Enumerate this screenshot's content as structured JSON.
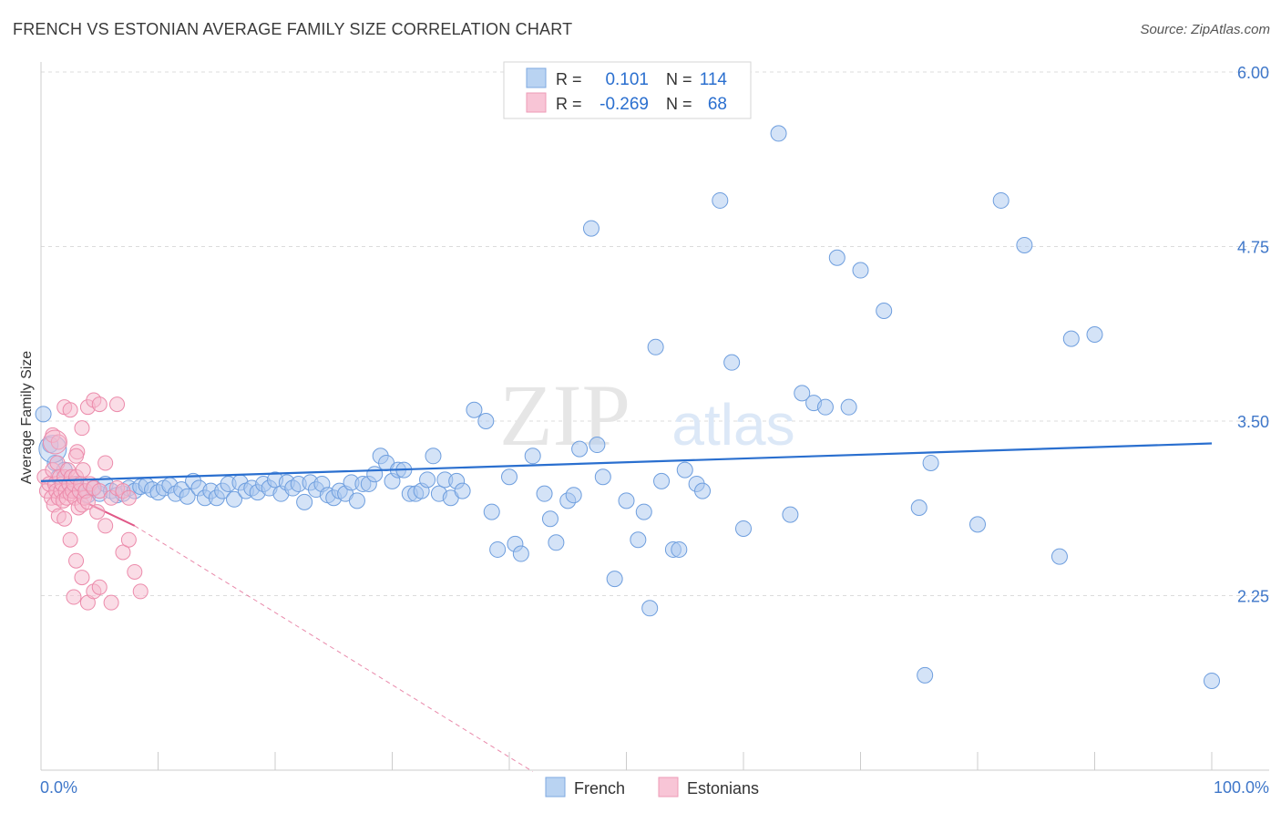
{
  "title": "FRENCH VS ESTONIAN AVERAGE FAMILY SIZE CORRELATION CHART",
  "source": "Source: ZipAtlas.com",
  "watermark": {
    "zip": "ZIP",
    "atlas": "atlas"
  },
  "colors": {
    "french_fill": "#a9c8ef",
    "french_stroke": "#6e9ede",
    "french_line": "#2a6fcf",
    "est_fill": "#f6b9cd",
    "est_stroke": "#ec8bab",
    "est_line": "#e05887",
    "tick_label": "#3f77c9",
    "grid": "#dcdcdc"
  },
  "legend": {
    "rows": [
      {
        "r_label": "R =",
        "r_value": "0.101",
        "n_label": "N =",
        "n_value": "114"
      },
      {
        "r_label": "R =",
        "r_value": "-0.269",
        "n_label": "N =",
        "n_value": "68"
      }
    ],
    "bottom": [
      "French",
      "Estonians"
    ]
  },
  "chart_data": {
    "type": "scatter",
    "title": "FRENCH VS ESTONIAN AVERAGE FAMILY SIZE CORRELATION CHART",
    "xlabel": "",
    "ylabel": "Average Family Size",
    "xlim": [
      0,
      100
    ],
    "ylim": [
      1.0,
      6.3
    ],
    "x_tick_labels": [
      "0.0%",
      "100.0%"
    ],
    "y_ticks": [
      2.25,
      3.5,
      4.75,
      6.0
    ],
    "y_tick_labels": [
      "2.25",
      "3.50",
      "4.75",
      "6.00"
    ],
    "grid": true,
    "series": [
      {
        "name": "French",
        "r": 0.101,
        "n": 114,
        "trend": {
          "x": [
            0,
            100
          ],
          "y": [
            3.07,
            3.34
          ]
        },
        "points": [
          [
            0.2,
            3.55
          ],
          [
            0.8,
            3.33
          ],
          [
            1.2,
            3.2
          ],
          [
            1.5,
            3.1
          ],
          [
            2,
            3.15
          ],
          [
            2.5,
            3.05
          ],
          [
            3,
            3.05
          ],
          [
            3.5,
            3.0
          ],
          [
            4,
            2.97
          ],
          [
            4.5,
            3.02
          ],
          [
            5,
            2.98
          ],
          [
            5.5,
            3.05
          ],
          [
            6,
            3.0
          ],
          [
            6.5,
            2.97
          ],
          [
            7,
            2.98
          ],
          [
            7.5,
            3.02
          ],
          [
            8,
            3.0
          ],
          [
            8.5,
            3.03
          ],
          [
            9,
            3.04
          ],
          [
            9.5,
            3.01
          ],
          [
            10,
            2.99
          ],
          [
            10.5,
            3.02
          ],
          [
            11,
            3.04
          ],
          [
            11.5,
            2.98
          ],
          [
            12,
            3.01
          ],
          [
            12.5,
            2.96
          ],
          [
            13,
            3.07
          ],
          [
            13.5,
            3.02
          ],
          [
            14,
            2.95
          ],
          [
            14.5,
            3.0
          ],
          [
            15,
            2.95
          ],
          [
            15.5,
            3.0
          ],
          [
            16,
            3.05
          ],
          [
            16.5,
            2.94
          ],
          [
            17,
            3.06
          ],
          [
            17.5,
            3.0
          ],
          [
            18,
            3.02
          ],
          [
            18.5,
            2.99
          ],
          [
            19,
            3.05
          ],
          [
            19.5,
            3.02
          ],
          [
            20,
            3.08
          ],
          [
            20.5,
            2.98
          ],
          [
            21,
            3.06
          ],
          [
            21.5,
            3.02
          ],
          [
            22,
            3.05
          ],
          [
            22.5,
            2.92
          ],
          [
            23,
            3.06
          ],
          [
            23.5,
            3.01
          ],
          [
            24,
            3.05
          ],
          [
            24.5,
            2.97
          ],
          [
            25,
            2.95
          ],
          [
            25.5,
            3.0
          ],
          [
            26,
            2.98
          ],
          [
            26.5,
            3.06
          ],
          [
            27,
            2.93
          ],
          [
            27.5,
            3.05
          ],
          [
            28,
            3.05
          ],
          [
            28.5,
            3.12
          ],
          [
            29,
            3.25
          ],
          [
            29.5,
            3.2
          ],
          [
            30,
            3.07
          ],
          [
            30.5,
            3.15
          ],
          [
            31,
            3.15
          ],
          [
            31.5,
            2.98
          ],
          [
            32,
            2.98
          ],
          [
            32.5,
            3.0
          ],
          [
            33,
            3.08
          ],
          [
            33.5,
            3.25
          ],
          [
            34,
            2.98
          ],
          [
            34.5,
            3.08
          ],
          [
            35,
            2.95
          ],
          [
            35.5,
            3.07
          ],
          [
            36,
            3.0
          ],
          [
            37,
            3.58
          ],
          [
            38,
            3.5
          ],
          [
            38.5,
            2.85
          ],
          [
            39,
            2.58
          ],
          [
            40,
            3.1
          ],
          [
            40.5,
            2.62
          ],
          [
            41,
            2.55
          ],
          [
            42,
            3.25
          ],
          [
            43,
            2.98
          ],
          [
            43.5,
            2.8
          ],
          [
            44,
            2.63
          ],
          [
            45,
            2.93
          ],
          [
            45.5,
            2.97
          ],
          [
            46,
            3.3
          ],
          [
            47,
            4.88
          ],
          [
            47.5,
            3.33
          ],
          [
            48,
            3.1
          ],
          [
            49,
            2.37
          ],
          [
            50,
            2.93
          ],
          [
            51,
            2.65
          ],
          [
            51.5,
            2.85
          ],
          [
            52,
            2.16
          ],
          [
            52.5,
            4.03
          ],
          [
            53,
            3.07
          ],
          [
            54,
            2.58
          ],
          [
            54.5,
            2.58
          ],
          [
            55,
            3.15
          ],
          [
            56,
            3.05
          ],
          [
            56.5,
            3.0
          ],
          [
            58,
            5.08
          ],
          [
            59,
            3.92
          ],
          [
            60,
            2.73
          ],
          [
            63,
            5.56
          ],
          [
            64,
            2.83
          ],
          [
            65,
            3.7
          ],
          [
            66,
            3.63
          ],
          [
            67,
            3.6
          ],
          [
            68,
            4.67
          ],
          [
            69,
            3.6
          ],
          [
            70,
            4.58
          ],
          [
            72,
            4.29
          ],
          [
            75,
            2.88
          ],
          [
            75.5,
            1.68
          ],
          [
            76,
            3.2
          ],
          [
            80,
            2.76
          ],
          [
            82,
            5.08
          ],
          [
            84,
            4.76
          ],
          [
            87,
            2.53
          ],
          [
            88,
            4.09
          ],
          [
            90,
            4.12
          ],
          [
            100,
            1.64
          ]
        ]
      },
      {
        "name": "Estonians",
        "r": -0.269,
        "n": 68,
        "trend_solid": {
          "x": [
            0,
            8
          ],
          "y": [
            3.07,
            2.75
          ]
        },
        "trend_dashed": {
          "x": [
            8,
            42
          ],
          "y": [
            2.75,
            0.99
          ]
        },
        "points": [
          [
            0.3,
            3.1
          ],
          [
            0.5,
            3.0
          ],
          [
            0.7,
            3.05
          ],
          [
            0.9,
            2.95
          ],
          [
            1.0,
            3.15
          ],
          [
            1.1,
            2.9
          ],
          [
            1.2,
            3.05
          ],
          [
            1.3,
            3.0
          ],
          [
            1.4,
            3.2
          ],
          [
            1.5,
            2.95
          ],
          [
            1.6,
            3.1
          ],
          [
            1.7,
            3.0
          ],
          [
            1.8,
            3.05
          ],
          [
            1.9,
            2.93
          ],
          [
            2.0,
            3.1
          ],
          [
            2.1,
            3.0
          ],
          [
            2.2,
            2.95
          ],
          [
            2.3,
            3.15
          ],
          [
            2.4,
            3.05
          ],
          [
            2.5,
            2.98
          ],
          [
            2.6,
            3.1
          ],
          [
            2.7,
            3.0
          ],
          [
            2.8,
            3.05
          ],
          [
            2.9,
            2.95
          ],
          [
            3.0,
            3.1
          ],
          [
            3.1,
            3.28
          ],
          [
            3.2,
            2.88
          ],
          [
            3.3,
            3.0
          ],
          [
            3.4,
            3.05
          ],
          [
            3.5,
            2.9
          ],
          [
            3.6,
            3.15
          ],
          [
            3.7,
            2.95
          ],
          [
            3.8,
            3.0
          ],
          [
            4.0,
            2.92
          ],
          [
            4.2,
            3.05
          ],
          [
            4.5,
            3.02
          ],
          [
            4.8,
            2.85
          ],
          [
            5.0,
            3.0
          ],
          [
            5.5,
            3.2
          ],
          [
            6.0,
            2.95
          ],
          [
            6.5,
            3.02
          ],
          [
            7.0,
            3.0
          ],
          [
            7.5,
            2.95
          ],
          [
            1.0,
            3.4
          ],
          [
            1.5,
            3.35
          ],
          [
            2.0,
            3.6
          ],
          [
            2.5,
            3.58
          ],
          [
            3.0,
            3.25
          ],
          [
            3.5,
            3.45
          ],
          [
            4.0,
            3.6
          ],
          [
            4.5,
            3.65
          ],
          [
            5.0,
            3.62
          ],
          [
            5.5,
            2.75
          ],
          [
            6.0,
            2.2
          ],
          [
            6.5,
            3.62
          ],
          [
            7.0,
            2.56
          ],
          [
            7.5,
            2.65
          ],
          [
            8.0,
            2.42
          ],
          [
            8.5,
            2.28
          ],
          [
            1.5,
            2.82
          ],
          [
            2.0,
            2.8
          ],
          [
            2.5,
            2.65
          ],
          [
            3.0,
            2.5
          ],
          [
            3.5,
            2.38
          ],
          [
            4.0,
            2.2
          ],
          [
            4.5,
            2.28
          ],
          [
            5.0,
            2.31
          ],
          [
            2.8,
            2.24
          ]
        ]
      }
    ]
  }
}
